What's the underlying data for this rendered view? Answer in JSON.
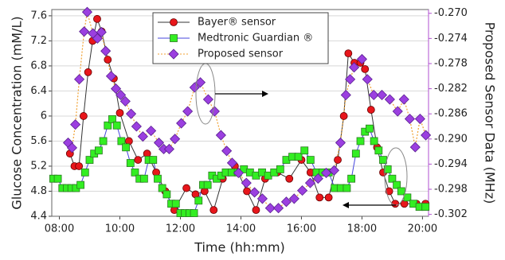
{
  "chart_data": {
    "type": "line",
    "xlabel": "Time (hh:mm)",
    "ylabel": "Glucose Concentration (mM/L)",
    "y2label": "Proposed Sensor Data (MHz)",
    "xlim": [
      7.75,
      20.2
    ],
    "xticks": [
      {
        "value": 8,
        "label": "08:00"
      },
      {
        "value": 10,
        "label": "10:00"
      },
      {
        "value": 12,
        "label": "12:00"
      },
      {
        "value": 14,
        "label": "14:00"
      },
      {
        "value": 16,
        "label": "16:00"
      },
      {
        "value": 18,
        "label": "18:00"
      },
      {
        "value": 20,
        "label": "20:00"
      }
    ],
    "ylim": [
      4.4,
      7.7
    ],
    "yticks": [
      4.4,
      4.8,
      5.2,
      5.6,
      6.0,
      6.4,
      6.8,
      7.2,
      7.6
    ],
    "y2lim": [
      -0.3023,
      -0.2694
    ],
    "y2ticks": [
      {
        "value": -0.302,
        "label": "-0.302"
      },
      {
        "value": -0.298,
        "label": "-0.298"
      },
      {
        "value": -0.294,
        "label": "-0.294"
      },
      {
        "value": -0.29,
        "label": "-0.290"
      },
      {
        "value": -0.286,
        "label": "-0.286"
      },
      {
        "value": -0.282,
        "label": "-0.282"
      },
      {
        "value": -0.278,
        "label": "-0.278"
      },
      {
        "value": -0.274,
        "label": "-0.274"
      },
      {
        "value": -0.27,
        "label": "-0.270"
      }
    ],
    "grid": true,
    "legend": "top",
    "series": [
      {
        "name": "Bayer® sensor",
        "color": "#e8161b",
        "line_color": "#333333",
        "marker": "circle",
        "x": [
          8.35,
          8.5,
          8.65,
          8.8,
          8.95,
          9.1,
          9.25,
          9.4,
          9.6,
          9.8,
          10.0,
          10.3,
          10.6,
          10.9,
          11.2,
          11.5,
          11.8,
          12.2,
          12.5,
          12.8,
          13.1,
          13.4,
          13.8,
          14.2,
          14.5,
          14.8,
          15.2,
          15.6,
          16.0,
          16.3,
          16.6,
          16.9,
          17.2,
          17.4,
          17.55,
          17.75,
          17.95,
          18.1,
          18.3,
          18.5,
          18.7,
          18.9,
          19.1,
          19.4,
          19.8,
          20.1
        ],
        "values": [
          5.4,
          5.2,
          5.2,
          6.0,
          6.7,
          7.2,
          7.55,
          7.35,
          6.9,
          6.6,
          6.05,
          5.6,
          5.3,
          5.4,
          5.1,
          4.8,
          4.5,
          4.85,
          4.75,
          4.8,
          4.5,
          5.0,
          5.2,
          4.8,
          4.5,
          5.0,
          5.1,
          5.0,
          5.3,
          5.1,
          4.7,
          4.7,
          5.3,
          6.0,
          7.0,
          6.85,
          6.85,
          6.75,
          6.1,
          5.5,
          5.1,
          4.8,
          4.6,
          4.6,
          4.6,
          4.6
        ]
      },
      {
        "name": "Medtronic Guardian ®",
        "color": "#33ee22",
        "line_color": "#4444dd",
        "marker": "square",
        "x": [
          7.8,
          7.95,
          8.1,
          8.25,
          8.4,
          8.55,
          8.7,
          8.85,
          9.0,
          9.15,
          9.3,
          9.45,
          9.6,
          9.75,
          9.9,
          10.05,
          10.2,
          10.35,
          10.5,
          10.65,
          10.8,
          10.95,
          11.1,
          11.25,
          11.4,
          11.55,
          11.7,
          11.85,
          12.0,
          12.15,
          12.3,
          12.45,
          12.6,
          12.75,
          12.9,
          13.05,
          13.2,
          13.35,
          13.5,
          13.7,
          13.9,
          14.1,
          14.3,
          14.5,
          14.7,
          14.9,
          15.1,
          15.3,
          15.5,
          15.7,
          15.9,
          16.1,
          16.3,
          16.5,
          16.7,
          16.9,
          17.1,
          17.3,
          17.5,
          17.65,
          17.8,
          17.95,
          18.1,
          18.25,
          18.4,
          18.55,
          18.7,
          18.85,
          19.0,
          19.15,
          19.3,
          19.5,
          19.7,
          19.9,
          20.1
        ],
        "values": [
          5.0,
          5.0,
          4.85,
          4.85,
          4.85,
          4.85,
          4.9,
          5.1,
          5.3,
          5.4,
          5.45,
          5.6,
          5.85,
          5.95,
          5.85,
          5.6,
          5.5,
          5.25,
          5.1,
          5.0,
          5.0,
          5.3,
          5.3,
          5.0,
          4.85,
          4.75,
          4.6,
          4.6,
          4.45,
          4.45,
          4.45,
          4.45,
          4.65,
          4.9,
          4.9,
          5.05,
          5.0,
          5.05,
          5.1,
          5.1,
          5.1,
          5.15,
          5.1,
          5.05,
          5.1,
          5.05,
          5.1,
          5.15,
          5.3,
          5.35,
          5.35,
          5.45,
          5.3,
          5.1,
          5.1,
          5.1,
          4.85,
          4.85,
          4.85,
          5.0,
          5.4,
          5.6,
          5.75,
          5.8,
          5.6,
          5.45,
          5.3,
          5.15,
          5.0,
          4.9,
          4.8,
          4.7,
          4.6,
          4.55,
          4.55
        ]
      },
      {
        "name": "Proposed sensor",
        "color": "#9b3fe0",
        "line_color": "#f0a030",
        "marker": "diamond",
        "axis": "y2",
        "x": [
          8.29,
          8.42,
          8.53,
          8.66,
          8.82,
          8.92,
          9.11,
          9.26,
          9.39,
          9.53,
          9.71,
          9.87,
          10.03,
          10.18,
          10.37,
          10.55,
          10.76,
          11.03,
          11.29,
          11.45,
          11.63,
          11.82,
          12.03,
          12.24,
          12.47,
          12.66,
          12.92,
          13.13,
          13.34,
          13.53,
          13.71,
          13.92,
          14.18,
          14.45,
          14.71,
          14.97,
          15.24,
          15.5,
          15.76,
          16.03,
          16.29,
          16.55,
          16.82,
          17.08,
          17.29,
          17.47,
          17.61,
          17.74,
          18.0,
          18.18,
          18.39,
          18.66,
          18.92,
          19.18,
          19.39,
          19.58,
          19.76,
          19.92,
          20.11
        ],
        "values": [
          -0.2906,
          -0.2914,
          -0.2877,
          -0.2805,
          -0.2729,
          -0.2698,
          -0.2732,
          -0.274,
          -0.273,
          -0.276,
          -0.28,
          -0.282,
          -0.283,
          -0.284,
          -0.286,
          -0.288,
          -0.2896,
          -0.2887,
          -0.2906,
          -0.2916,
          -0.2916,
          -0.29,
          -0.2875,
          -0.2856,
          -0.2818,
          -0.281,
          -0.2837,
          -0.2856,
          -0.2894,
          -0.2919,
          -0.2938,
          -0.2954,
          -0.297,
          -0.2985,
          -0.2995,
          -0.301,
          -0.301,
          -0.3,
          -0.2995,
          -0.2982,
          -0.297,
          -0.2963,
          -0.2954,
          -0.295,
          -0.2906,
          -0.283,
          -0.2805,
          -0.2786,
          -0.2773,
          -0.2805,
          -0.283,
          -0.283,
          -0.2837,
          -0.2856,
          -0.2837,
          -0.2868,
          -0.2913,
          -0.2868,
          -0.2894
        ]
      }
    ]
  }
}
